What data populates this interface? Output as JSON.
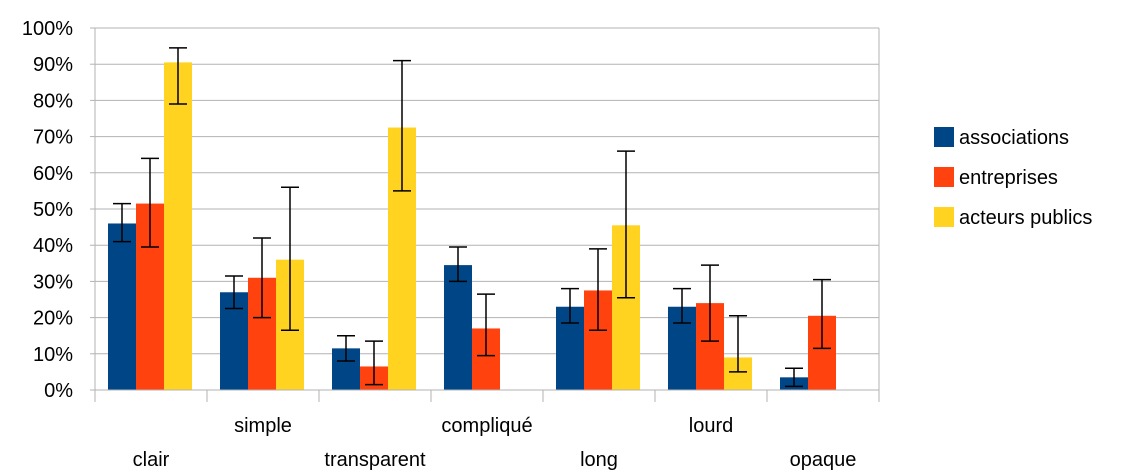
{
  "chart_data": {
    "type": "bar",
    "title": "",
    "xlabel": "",
    "ylabel": "",
    "ylim": [
      0,
      100
    ],
    "y_ticks": [
      0,
      10,
      20,
      30,
      40,
      50,
      60,
      70,
      80,
      90,
      100
    ],
    "y_tick_labels": [
      "0%",
      "10%",
      "20%",
      "30%",
      "40%",
      "50%",
      "60%",
      "70%",
      "80%",
      "90%",
      "100%"
    ],
    "grid": "horizontal",
    "legend_position": "right",
    "error_bars": true,
    "categories": [
      "clair",
      "simple",
      "transparent",
      "compliqué",
      "long",
      "lourd",
      "opaque"
    ],
    "series": [
      {
        "name": "associations",
        "color": "#004586",
        "values": [
          46,
          27,
          11.5,
          34.5,
          23,
          23,
          3.5
        ],
        "error_low": [
          41,
          22.5,
          8,
          30,
          18.5,
          18.5,
          1
        ],
        "error_high": [
          51.5,
          31.5,
          15,
          39.5,
          28,
          28,
          6
        ]
      },
      {
        "name": "entreprises",
        "color": "#ff420e",
        "values": [
          51.5,
          31,
          6.5,
          17,
          27.5,
          24,
          20.5
        ],
        "error_low": [
          39.5,
          20,
          1.5,
          9.5,
          16.5,
          13.5,
          11.5
        ],
        "error_high": [
          64,
          42,
          13.5,
          26.5,
          39,
          34.5,
          30.5
        ]
      },
      {
        "name": "acteurs publics",
        "color": "#ffd320",
        "values": [
          90.5,
          36,
          72.5,
          null,
          45.5,
          9,
          null
        ],
        "error_low": [
          79,
          16.5,
          55,
          null,
          25.5,
          5,
          null
        ],
        "error_high": [
          94.5,
          56,
          91,
          null,
          66,
          20.5,
          null
        ]
      }
    ]
  }
}
